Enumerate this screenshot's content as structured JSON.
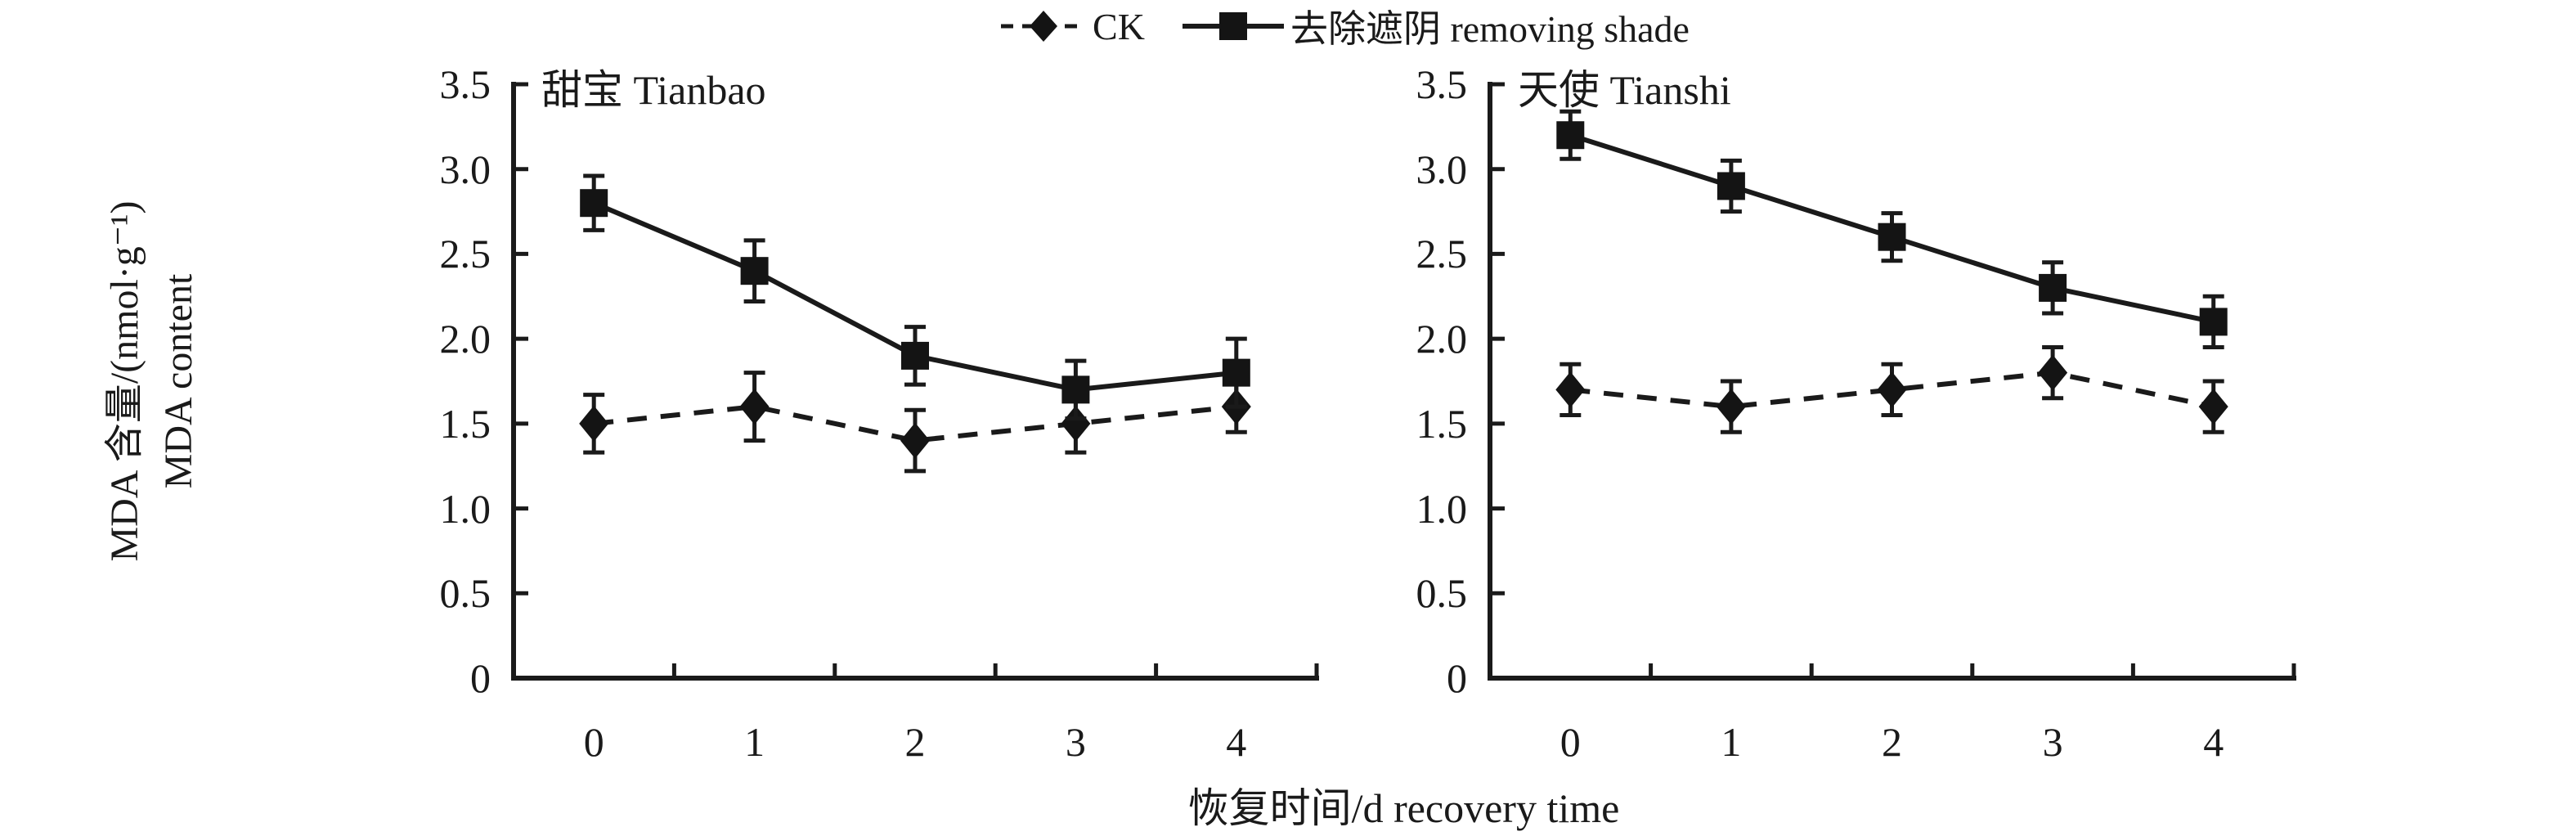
{
  "figure": {
    "x_axis_title": "恢复时间/d recovery time",
    "y_axis_title_line1": "MDA 含量/(nmol·g⁻¹)",
    "y_axis_title_line2": "MDA content"
  },
  "legend": {
    "position": "top",
    "items": [
      {
        "label": "CK",
        "marker": "diamond",
        "line": "dashed"
      },
      {
        "label": "去除遮阴 removing shade",
        "marker": "square",
        "line": "solid"
      }
    ]
  },
  "axes": {
    "y_ticks": [
      "3.5",
      "3.0",
      "2.5",
      "2.0",
      "1.5",
      "1.0",
      "0.5",
      "0"
    ],
    "x_ticks": [
      "0",
      "1",
      "2",
      "3",
      "4"
    ],
    "ylim": [
      0,
      3.5
    ],
    "grid": false
  },
  "colors": {
    "ink": "#1a1a1a",
    "background": "#ffffff"
  },
  "chart_data": [
    {
      "type": "line",
      "title": "甜宝 Tianbao",
      "xlabel": "恢复时间/d recovery time",
      "ylabel": "MDA 含量/(nmol·g⁻¹) MDA content",
      "x": [
        0,
        1,
        2,
        3,
        4
      ],
      "ylim": [
        0,
        3.5
      ],
      "series": [
        {
          "name": "CK",
          "marker": "diamond",
          "line": "dashed",
          "values": [
            1.5,
            1.6,
            1.4,
            1.5,
            1.6
          ],
          "errors": [
            0.17,
            0.2,
            0.18,
            0.17,
            0.15
          ]
        },
        {
          "name": "去除遮阴 removing shade",
          "marker": "square",
          "line": "solid",
          "values": [
            2.8,
            2.4,
            1.9,
            1.7,
            1.8
          ],
          "errors": [
            0.16,
            0.18,
            0.17,
            0.17,
            0.2
          ]
        }
      ]
    },
    {
      "type": "line",
      "title": "天使 Tianshi",
      "xlabel": "恢复时间/d recovery time",
      "ylabel": "MDA 含量/(nmol·g⁻¹) MDA content",
      "x": [
        0,
        1,
        2,
        3,
        4
      ],
      "ylim": [
        0,
        3.5
      ],
      "series": [
        {
          "name": "CK",
          "marker": "diamond",
          "line": "dashed",
          "values": [
            1.7,
            1.6,
            1.7,
            1.8,
            1.6
          ],
          "errors": [
            0.15,
            0.15,
            0.15,
            0.15,
            0.15
          ]
        },
        {
          "name": "去除遮阴 removing shade",
          "marker": "square",
          "line": "solid",
          "values": [
            3.2,
            2.9,
            2.6,
            2.3,
            2.1
          ],
          "errors": [
            0.14,
            0.15,
            0.14,
            0.15,
            0.15
          ]
        }
      ]
    }
  ]
}
